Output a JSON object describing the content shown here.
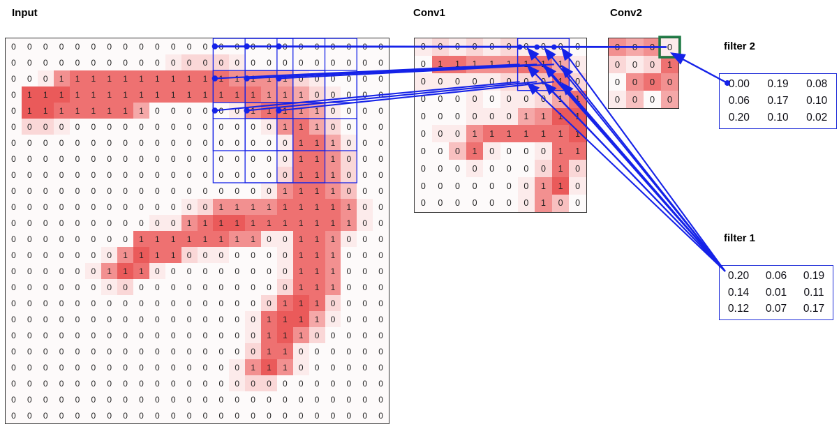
{
  "titles": {
    "input": "Input",
    "conv1": "Conv1",
    "conv2": "Conv2"
  },
  "colors": {
    "heat_scale": [
      "#fdfafa",
      "#fcebeb",
      "#fad7d7",
      "#f8c0c0",
      "#f5a8a8",
      "#f29090",
      "#ee7171",
      "#ea5a5a"
    ],
    "blue": "#1522e8",
    "green": "#1f7a45",
    "grid_border": "#2f2f2f",
    "digit": "#1f1f1f"
  },
  "input_grid": {
    "rows": 24,
    "cols": 24,
    "values": [
      "000000000000000000000000",
      "000000000000000000000000",
      "000111111111111111000000",
      "011111111111111111100000",
      "011111111000000111110000",
      "000000000000000001110000",
      "000000000000000000111000",
      "000000000000000000111000",
      "000000000000000000111000",
      "000000000000000001111000",
      "000000000000011111111100",
      "000000000001111111111100",
      "000000001111111100111000",
      "000000011110000000111000",
      "000000111000000000111000",
      "000000000000000000111000",
      "000000000000000001110000",
      "000000000000000011110000",
      "000000000000000011100000",
      "000000000000000011000000",
      "000000000000000111000000",
      "000000000000000000000000",
      "000000000000000000000000",
      "000000000000000000000000"
    ],
    "shades": [
      "000000000000000000000000",
      "000000000012221000000000",
      "001566666666665554210000",
      "077766666666666655421000",
      "077666664000001566541000",
      "022100000000000015642000",
      "000000000000000001664100",
      "000000000000000001665200",
      "000000000000000002665200",
      "000000000000000015665300",
      "000000000001255556666510",
      "000000000115677666666510",
      "000000006666665511665100",
      "000000157662110001665000",
      "000001576100000001665000",
      "000000120000000002665000",
      "000000000000000026762000",
      "000000000000000167741000",
      "000000000000000167520000",
      "000000000000000266100000",
      "000000000000001575100000",
      "000000000000001220000000",
      "000000000000000000000000",
      "000000000000000000000000"
    ]
  },
  "conv1_grid": {
    "rows": 10,
    "cols": 10,
    "values": [
      "0000000000",
      "0111111110",
      "0000000010",
      "0000000011",
      "0000001111",
      "0001111111",
      "0001000011",
      "0000000010",
      "0000000110",
      "0000000100"
    ],
    "shades": [
      "1212121110",
      "0665556641",
      "1111122362",
      "0001011246",
      "0001114577",
      "0115666667",
      "0036100166",
      "0001000262",
      "0000001571",
      "0000001530"
    ]
  },
  "conv2_grid": {
    "rows": 4,
    "cols": 4,
    "values": [
      "0000",
      "0001",
      "0000",
      "0000"
    ],
    "shades": [
      "5451",
      "2126",
      "0565",
      "1304"
    ]
  },
  "filter1": {
    "label": "filter 1",
    "values": [
      [
        "0.20",
        "0.06",
        "0.19"
      ],
      [
        "0.14",
        "0.01",
        "0.11"
      ],
      [
        "0.12",
        "0.07",
        "0.17"
      ]
    ]
  },
  "filter2": {
    "label": "filter 2",
    "values": [
      [
        "0.00",
        "0.19",
        "0.08"
      ],
      [
        "0.06",
        "0.17",
        "0.10"
      ],
      [
        "0.20",
        "0.10",
        "0.02"
      ]
    ]
  },
  "overlay": {
    "input_windows": [
      {
        "r": 0,
        "c": 13
      },
      {
        "r": 0,
        "c": 15
      },
      {
        "r": 0,
        "c": 17
      },
      {
        "r": 2,
        "c": 13
      },
      {
        "r": 2,
        "c": 15
      },
      {
        "r": 2,
        "c": 17
      },
      {
        "r": 4,
        "c": 13
      },
      {
        "r": 4,
        "c": 15
      },
      {
        "r": 4,
        "c": 17
      }
    ],
    "window_size": 5,
    "input_dots": [
      [
        0,
        13
      ],
      [
        0,
        15
      ],
      [
        0,
        17
      ],
      [
        2,
        13
      ],
      [
        2,
        15
      ],
      [
        2,
        17
      ],
      [
        4,
        13
      ],
      [
        4,
        15
      ],
      [
        4,
        17
      ]
    ],
    "conv1_dots": [
      [
        0,
        6
      ],
      [
        0,
        7
      ],
      [
        0,
        8
      ]
    ],
    "conv1_box": {
      "r": 0,
      "c": 6,
      "size": 3
    },
    "conv2_highlight_cell": {
      "r": 0,
      "c": 3
    },
    "bundles": [
      {
        "input_row": 2,
        "input_cols": [
          13,
          15,
          17
        ],
        "conv1_row": 1,
        "conv1_cols": [
          6,
          7,
          8
        ]
      },
      {
        "input_row": 4,
        "input_cols": [
          13,
          15,
          17
        ],
        "conv1_row": 2,
        "conv1_cols": [
          6,
          7,
          8
        ]
      }
    ]
  }
}
